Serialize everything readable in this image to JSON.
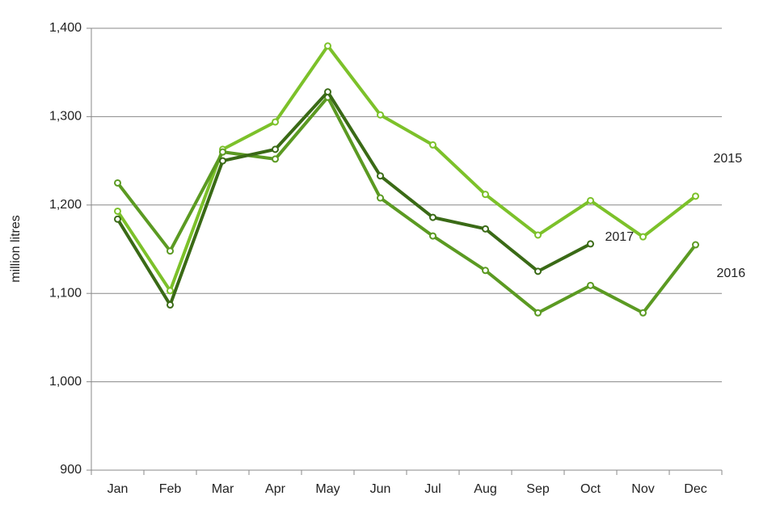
{
  "chart_data": {
    "type": "line",
    "ylabel": "million litres",
    "categories": [
      "Jan",
      "Feb",
      "Mar",
      "Apr",
      "May",
      "Jun",
      "Jul",
      "Aug",
      "Sep",
      "Oct",
      "Nov",
      "Dec"
    ],
    "series": [
      {
        "name": "2015",
        "color": "#7cc12a",
        "values": [
          1193,
          1103,
          1263,
          1294,
          1380,
          1302,
          1268,
          1212,
          1166,
          1205,
          1164,
          1210
        ]
      },
      {
        "name": "2016",
        "color": "#5b9a22",
        "values": [
          1225,
          1148,
          1260,
          1252,
          1322,
          1208,
          1165,
          1126,
          1078,
          1109,
          1078,
          1155
        ]
      },
      {
        "name": "2017",
        "color": "#3a6a16",
        "values": [
          1184,
          1087,
          1250,
          1263,
          1328,
          1233,
          1186,
          1173,
          1125,
          1156,
          null,
          null
        ]
      }
    ],
    "ylim": [
      900,
      1400
    ],
    "yticks": [
      {
        "value": 900,
        "label": "900"
      },
      {
        "value": 1000,
        "label": "1,000"
      },
      {
        "value": 1100,
        "label": "1,100"
      },
      {
        "value": 1200,
        "label": "1,200"
      },
      {
        "value": 1300,
        "label": "1,300"
      },
      {
        "value": 1400,
        "label": "1,400"
      }
    ],
    "grid": true
  }
}
